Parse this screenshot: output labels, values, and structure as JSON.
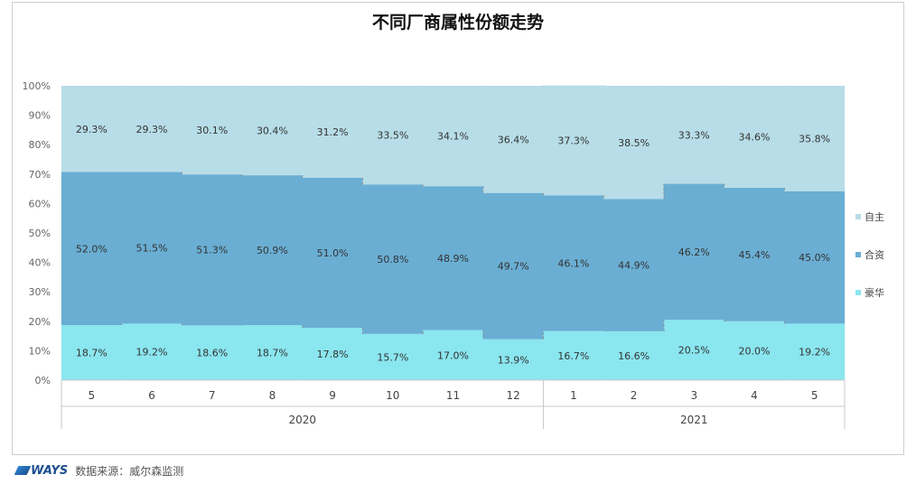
{
  "chart_data": {
    "type": "bar",
    "stacked": true,
    "normalized": true,
    "title": "不同厂商属性份额走势",
    "categories": [
      "5",
      "6",
      "7",
      "8",
      "9",
      "10",
      "11",
      "12",
      "1",
      "2",
      "3",
      "4",
      "5"
    ],
    "category_groups": [
      {
        "label": "2020",
        "count": 8
      },
      {
        "label": "2021",
        "count": 5
      }
    ],
    "series": [
      {
        "name": "豪华",
        "color": "#8ae6ef",
        "values": [
          18.7,
          19.2,
          18.6,
          18.7,
          17.8,
          15.7,
          17.0,
          13.9,
          16.7,
          16.6,
          20.5,
          20.0,
          19.2
        ]
      },
      {
        "name": "合资",
        "color": "#6aaed3",
        "values": [
          52.0,
          51.5,
          51.3,
          50.9,
          51.0,
          50.8,
          48.9,
          49.7,
          46.1,
          44.9,
          46.2,
          45.4,
          45.0
        ]
      },
      {
        "name": "自主",
        "color": "#b7dde8",
        "values": [
          29.3,
          29.3,
          30.1,
          30.4,
          31.2,
          33.5,
          34.1,
          36.4,
          37.3,
          38.5,
          33.3,
          34.6,
          35.8
        ]
      }
    ],
    "ylim": [
      0,
      100
    ],
    "yticks": [
      "0%",
      "10%",
      "20%",
      "30%",
      "40%",
      "50%",
      "60%",
      "70%",
      "80%",
      "90%",
      "100%"
    ],
    "legend": "right",
    "grid": false
  },
  "footer": {
    "logo": "WAYS",
    "source": "数据来源：威尔森监测"
  }
}
